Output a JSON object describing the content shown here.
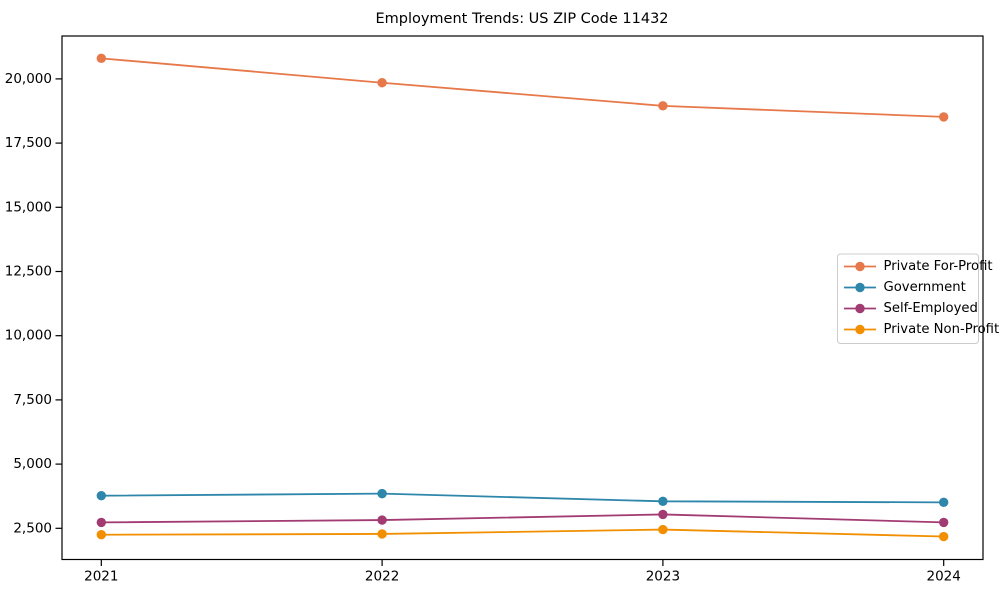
{
  "title": "Employment Trends: US ZIP Code 11432",
  "chart_data": {
    "type": "line",
    "title": "Employment Trends: US ZIP Code 11432",
    "xlabel": "",
    "ylabel": "",
    "x": [
      2021,
      2022,
      2023,
      2024
    ],
    "x_tick_labels": [
      "2021",
      "2022",
      "2023",
      "2024"
    ],
    "series": [
      {
        "name": "Private For-Profit",
        "color": "#E6784A",
        "values": [
          20800,
          19850,
          18950,
          18520
        ]
      },
      {
        "name": "Government",
        "color": "#2E86AB",
        "values": [
          3770,
          3850,
          3550,
          3510
        ]
      },
      {
        "name": "Self-Employed",
        "color": "#A23B72",
        "values": [
          2730,
          2820,
          3040,
          2730
        ]
      },
      {
        "name": "Private Non-Profit",
        "color": "#F18F01",
        "values": [
          2250,
          2280,
          2450,
          2180
        ]
      }
    ],
    "yticks": [
      2500,
      5000,
      7500,
      10000,
      12500,
      15000,
      17500,
      20000
    ],
    "ytick_labels": [
      "2,500",
      "5,000",
      "7,500",
      "10,000",
      "12,500",
      "15,000",
      "17,500",
      "20,000"
    ],
    "ylim": [
      1285,
      21670
    ],
    "xlim": [
      2020.86,
      2024.14
    ],
    "grid": false,
    "legend_position": "center-right",
    "marker": "circle",
    "axis_color": "#000000",
    "legend_border_color": "#cccccc",
    "legend_bg_color": "#ffffff"
  }
}
